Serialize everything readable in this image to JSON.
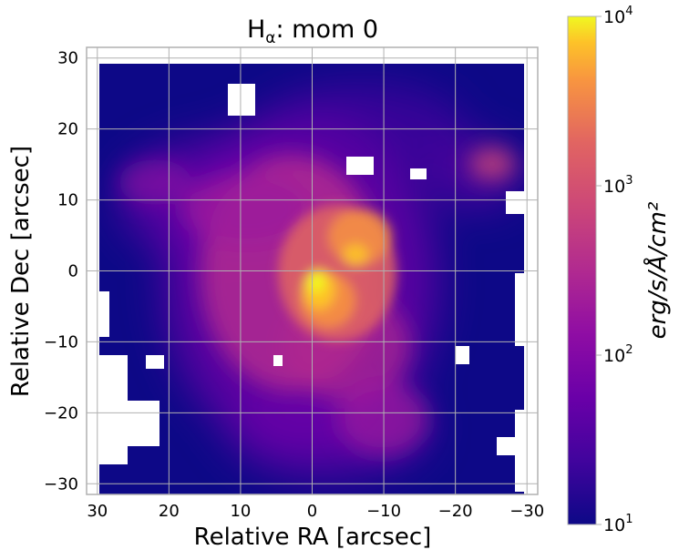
{
  "chart_data": {
    "type": "heatmap",
    "title_main": "H",
    "title_sub": "α",
    "title_rest": ": mom 0",
    "xlabel": "Relative RA [arcsec]",
    "ylabel": "Relative Dec [arcsec]",
    "xlim": [
      31.5,
      -31.5
    ],
    "ylim": [
      -31.5,
      31.5
    ],
    "x_ticks": [
      30,
      20,
      10,
      0,
      -10,
      -20,
      -30
    ],
    "x_tick_labels": [
      "30",
      "20",
      "10",
      "0",
      "−10",
      "−20",
      "−30"
    ],
    "y_ticks": [
      30,
      20,
      10,
      0,
      -10,
      -20,
      -30
    ],
    "y_tick_labels": [
      "30",
      "20",
      "10",
      "0",
      "−10",
      "−20",
      "−30"
    ],
    "grid": true,
    "colormap": "plasma",
    "color_scale": "log",
    "colorbar": {
      "label": "erg/s/Å/cm²",
      "ticks": [
        {
          "value": 10000,
          "base": "10",
          "exp": "4"
        },
        {
          "value": 1000,
          "base": "10",
          "exp": "3"
        },
        {
          "value": 100,
          "base": "10",
          "exp": "2"
        },
        {
          "value": 10,
          "base": "10",
          "exp": "1"
        }
      ],
      "range": [
        10,
        10000
      ]
    },
    "emission_peak": {
      "ra": 0,
      "dec": -1,
      "value": 8000
    },
    "colors": {
      "min": "#0d0887",
      "mid": "#cc4778",
      "max": "#f0f921",
      "grid": "#b0b0b0"
    }
  }
}
